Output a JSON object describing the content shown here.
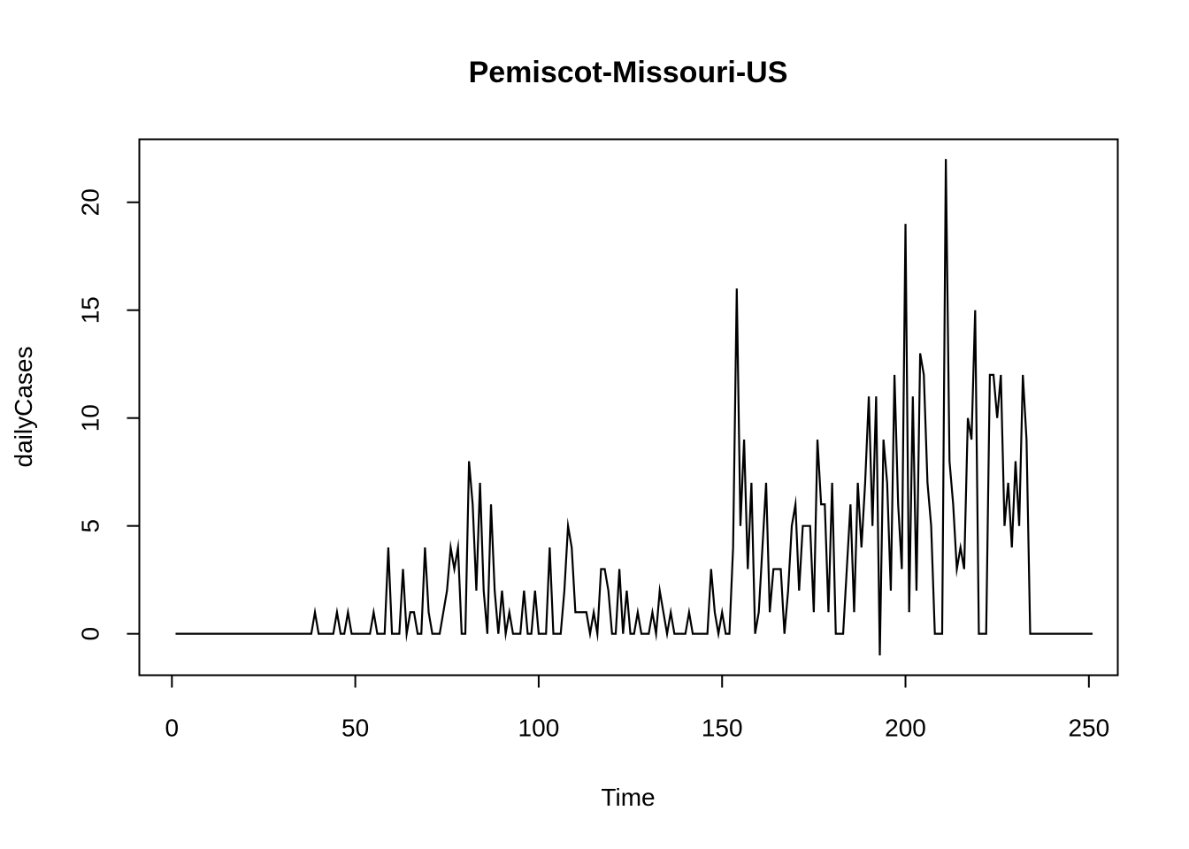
{
  "chart_data": {
    "type": "line",
    "title": "Pemiscot-Missouri-US",
    "xlabel": "Time",
    "ylabel": "dailyCases",
    "xlim": [
      -8.88,
      257.88
    ],
    "ylim": [
      -1.92,
      22.92
    ],
    "x_ticks": [
      0,
      50,
      100,
      150,
      200,
      250
    ],
    "y_ticks": [
      0,
      5,
      10,
      15,
      20
    ],
    "x_tick_labels": [
      "0",
      "50",
      "100",
      "150",
      "200",
      "250"
    ],
    "y_tick_labels": [
      "0",
      "5",
      "10",
      "15",
      "20"
    ],
    "grid": false,
    "legend": "none",
    "line_color": "#000000",
    "series": [
      {
        "x_start": 1,
        "values": [
          0,
          0,
          0,
          0,
          0,
          0,
          0,
          0,
          0,
          0,
          0,
          0,
          0,
          0,
          0,
          0,
          0,
          0,
          0,
          0,
          0,
          0,
          0,
          0,
          0,
          0,
          0,
          0,
          0,
          0,
          0,
          0,
          0,
          0,
          0,
          0,
          0,
          0,
          1,
          0,
          0,
          0,
          0,
          0,
          1,
          0,
          0,
          1,
          0,
          0,
          0,
          0,
          0,
          0,
          1,
          0,
          0,
          0,
          4,
          0,
          0,
          0,
          3,
          0,
          1,
          1,
          0,
          0,
          4,
          1,
          0,
          0,
          0,
          1,
          2,
          4,
          3,
          4,
          0,
          0,
          8,
          6,
          2,
          7,
          2,
          0,
          6,
          2,
          0,
          2,
          0,
          1,
          0,
          0,
          0,
          2,
          0,
          0,
          2,
          0,
          0,
          0,
          4,
          0,
          0,
          0,
          2,
          5,
          4,
          1,
          1,
          1,
          1,
          0,
          1,
          0,
          3,
          3,
          2,
          0,
          0,
          3,
          0,
          2,
          0,
          0,
          1,
          0,
          0,
          0,
          1,
          0,
          2,
          1,
          0,
          1,
          0,
          0,
          0,
          0,
          1,
          0,
          0,
          0,
          0,
          0,
          3,
          1,
          0,
          1,
          0,
          0,
          4,
          16,
          5,
          9,
          3,
          7,
          0,
          1,
          4,
          7,
          1,
          3,
          3,
          3,
          0,
          2,
          5,
          6,
          2,
          5,
          5,
          5,
          1,
          9,
          6,
          6,
          1,
          7,
          0,
          0,
          0,
          3,
          6,
          1,
          7,
          4,
          7,
          11,
          5,
          11,
          -1,
          9,
          7,
          2,
          12,
          6,
          3,
          19,
          1,
          11,
          2,
          13,
          12,
          7,
          5,
          0,
          0,
          0,
          22,
          8,
          6,
          3,
          4,
          3,
          10,
          9,
          15,
          0,
          0,
          0,
          12,
          12,
          10,
          12,
          5,
          7,
          4,
          8,
          5,
          12,
          9,
          0,
          0,
          0,
          0,
          0,
          0,
          0,
          0,
          0,
          0,
          0,
          0,
          0,
          0,
          0,
          0,
          0,
          0
        ]
      }
    ]
  }
}
